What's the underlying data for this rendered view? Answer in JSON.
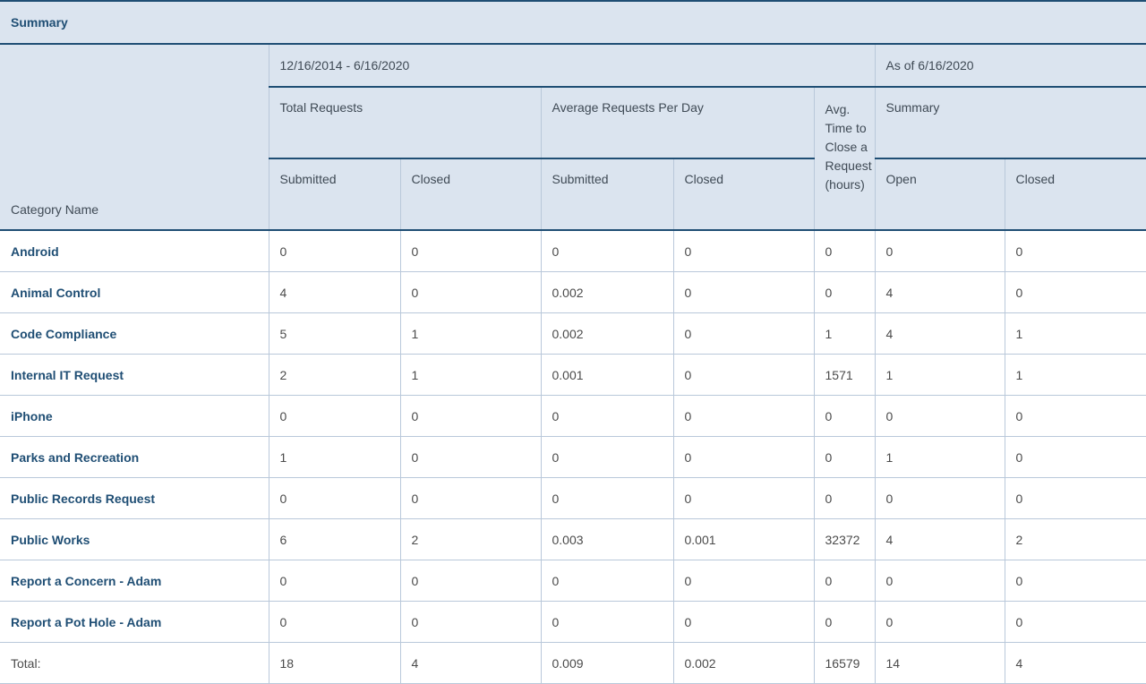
{
  "header": {
    "title": "Summary",
    "category_label": "Category Name",
    "date_range": "12/16/2014 - 6/16/2020",
    "as_of": "As of 6/16/2020",
    "total_requests": "Total Requests",
    "avg_requests_per_day": "Average Requests Per Day",
    "avg_time_to_close": "Avg. Time to Close a Request (hours)",
    "summary_group": "Summary",
    "submitted": "Submitted",
    "closed": "Closed",
    "open": "Open"
  },
  "rows": [
    {
      "category": "Android",
      "tr_submitted": "0",
      "tr_closed": "0",
      "avg_submitted": "0",
      "avg_closed": "0",
      "avg_time": "0",
      "open": "0",
      "closed": "0"
    },
    {
      "category": "Animal Control",
      "tr_submitted": "4",
      "tr_closed": "0",
      "avg_submitted": "0.002",
      "avg_closed": "0",
      "avg_time": "0",
      "open": "4",
      "closed": "0"
    },
    {
      "category": "Code Compliance",
      "tr_submitted": "5",
      "tr_closed": "1",
      "avg_submitted": "0.002",
      "avg_closed": "0",
      "avg_time": "1",
      "open": "4",
      "closed": "1"
    },
    {
      "category": "Internal IT Request",
      "tr_submitted": "2",
      "tr_closed": "1",
      "avg_submitted": "0.001",
      "avg_closed": "0",
      "avg_time": "1571",
      "open": "1",
      "closed": "1"
    },
    {
      "category": "iPhone",
      "tr_submitted": "0",
      "tr_closed": "0",
      "avg_submitted": "0",
      "avg_closed": "0",
      "avg_time": "0",
      "open": "0",
      "closed": "0"
    },
    {
      "category": "Parks and Recreation",
      "tr_submitted": "1",
      "tr_closed": "0",
      "avg_submitted": "0",
      "avg_closed": "0",
      "avg_time": "0",
      "open": "1",
      "closed": "0"
    },
    {
      "category": "Public Records Request",
      "tr_submitted": "0",
      "tr_closed": "0",
      "avg_submitted": "0",
      "avg_closed": "0",
      "avg_time": "0",
      "open": "0",
      "closed": "0"
    },
    {
      "category": "Public Works",
      "tr_submitted": "6",
      "tr_closed": "2",
      "avg_submitted": "0.003",
      "avg_closed": "0.001",
      "avg_time": "32372",
      "open": "4",
      "closed": "2"
    },
    {
      "category": "Report a Concern - Adam",
      "tr_submitted": "0",
      "tr_closed": "0",
      "avg_submitted": "0",
      "avg_closed": "0",
      "avg_time": "0",
      "open": "0",
      "closed": "0"
    },
    {
      "category": "Report a Pot Hole - Adam",
      "tr_submitted": "0",
      "tr_closed": "0",
      "avg_submitted": "0",
      "avg_closed": "0",
      "avg_time": "0",
      "open": "0",
      "closed": "0"
    }
  ],
  "total": {
    "label": "Total:",
    "tr_submitted": "18",
    "tr_closed": "4",
    "avg_submitted": "0.009",
    "avg_closed": "0.002",
    "avg_time": "16579",
    "open": "14",
    "closed": "4"
  },
  "colors": {
    "header_bg": "#dbe4ef",
    "accent": "#1f4e74",
    "grid_line": "#b9c8da"
  }
}
